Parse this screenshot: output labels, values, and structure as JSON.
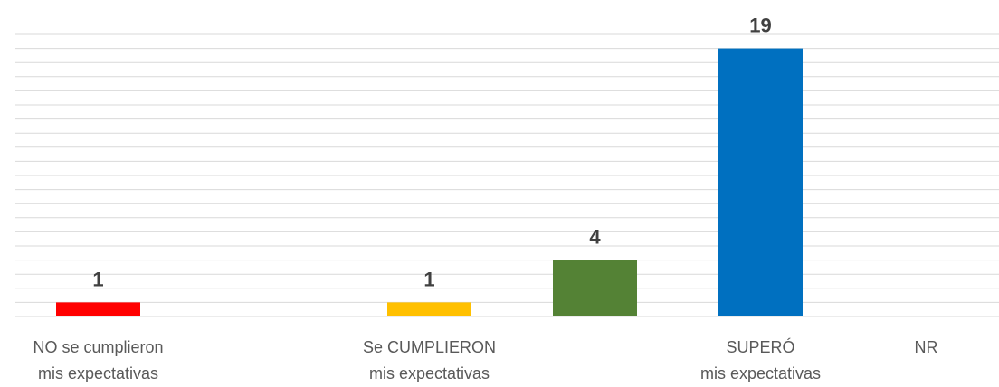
{
  "chart_data": {
    "type": "bar",
    "categories": [
      "NO se cumplieron\nmis expectativas",
      null,
      "Se CUMPLIERON\nmis expectativas",
      null,
      "SUPERÓ\nmis expectativas",
      "NR"
    ],
    "values": [
      1,
      null,
      1,
      4,
      19,
      null
    ],
    "colors": [
      "#ff0000",
      null,
      "#ffc000",
      "#548235",
      "#0070c0",
      null
    ],
    "ylim": [
      0,
      20
    ],
    "yticks": [
      0,
      1,
      2,
      3,
      4,
      5,
      6,
      7,
      8,
      9,
      10,
      11,
      12,
      13,
      14,
      15,
      16,
      17,
      18,
      19,
      20
    ],
    "ytick_labels": false,
    "grid": true
  }
}
